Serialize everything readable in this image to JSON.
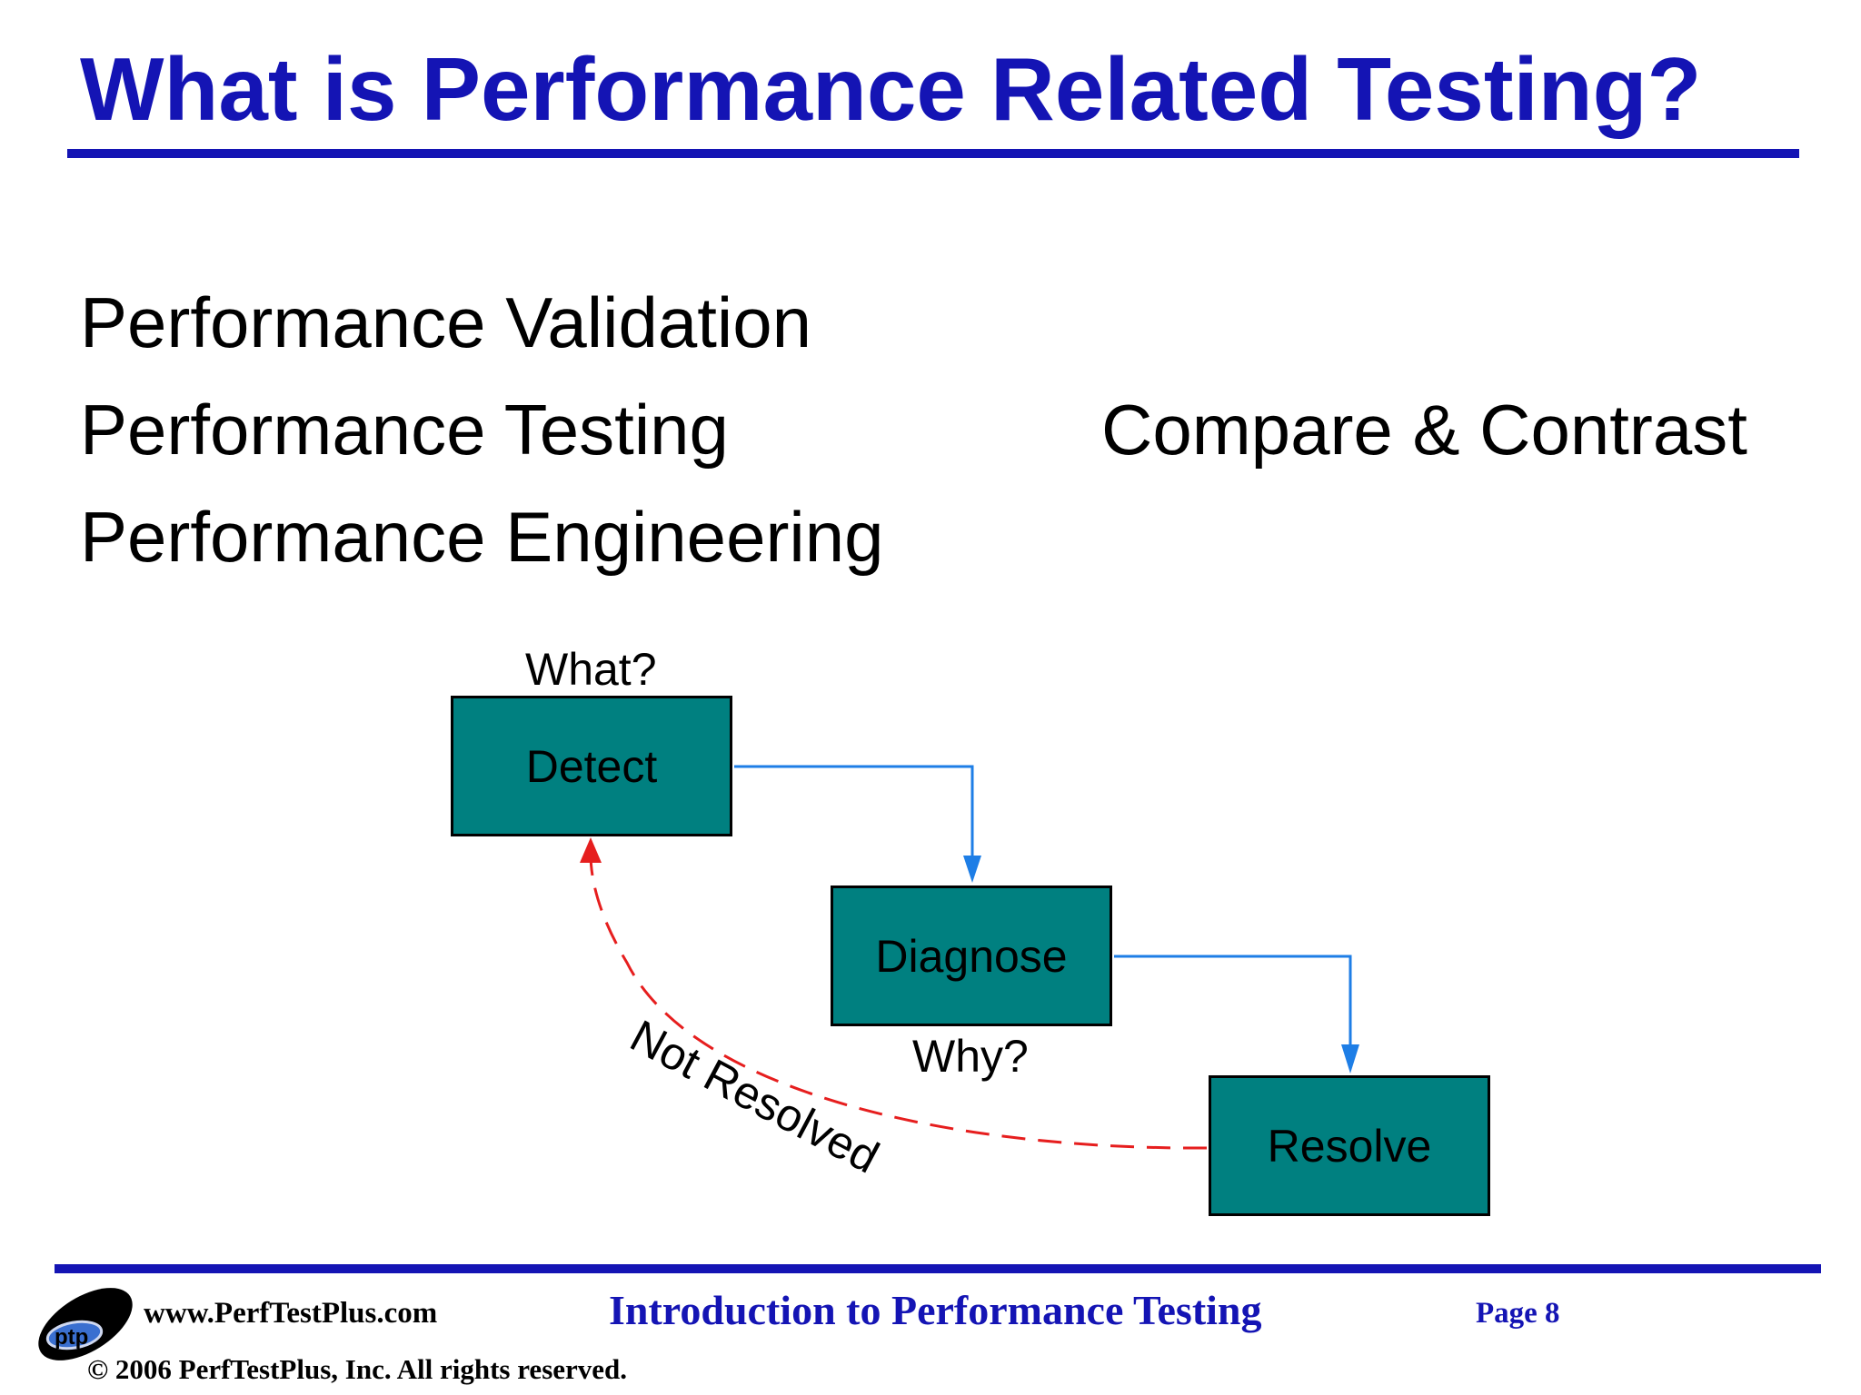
{
  "slide": {
    "title": "What is Performance Related Testing?",
    "bullets": [
      "Performance Validation",
      "Performance Testing",
      "Performance Engineering"
    ],
    "side_note": "Compare & Contrast"
  },
  "diagram": {
    "nodes": {
      "detect": "Detect",
      "diagnose": "Diagnose",
      "resolve": "Resolve"
    },
    "labels": {
      "what": "What?",
      "why": "Why?",
      "not_resolved": "Not Resolved"
    },
    "colors": {
      "node_fill": "#008080",
      "flow_arrow": "#1e7ee6",
      "loop_arrow": "#e61e1e"
    }
  },
  "footer": {
    "logo_text": "ptp",
    "url": "www.PerfTestPlus.com",
    "copyright": "© 2006 PerfTestPlus, Inc.  All rights reserved.",
    "course": "Introduction to Performance Testing",
    "page": "Page 8"
  },
  "colors": {
    "accent": "#1414b4"
  }
}
